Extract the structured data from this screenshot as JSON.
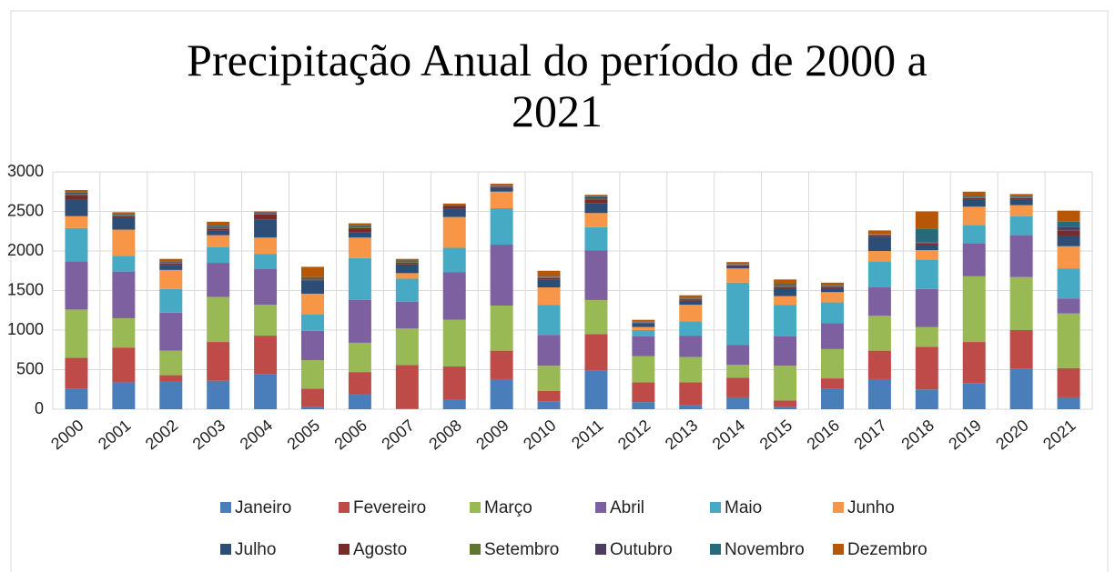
{
  "chart_data": {
    "type": "stacked_bar",
    "title": "Precipitação Anual do período de 2000 a 2021",
    "categories": [
      "2000",
      "2001",
      "2002",
      "2003",
      "2004",
      "2005",
      "2006",
      "2007",
      "2008",
      "2009",
      "2010",
      "2011",
      "2012",
      "2013",
      "2014",
      "2015",
      "2016",
      "2017",
      "2018",
      "2019",
      "2020",
      "2021"
    ],
    "ylim": [
      0,
      3000
    ],
    "yticks": [
      0,
      500,
      1000,
      1500,
      2000,
      2500,
      3000
    ],
    "grid": true,
    "legend": "bottom",
    "series": [
      {
        "name": "Janeiro",
        "color": "#4a7ebb",
        "values": [
          260,
          340,
          350,
          360,
          440,
          30,
          190,
          10,
          120,
          380,
          100,
          490,
          90,
          50,
          150,
          30,
          260,
          380,
          250,
          330,
          510,
          150
        ]
      },
      {
        "name": "Fevereiro",
        "color": "#be4b48",
        "values": [
          390,
          440,
          80,
          490,
          490,
          230,
          280,
          550,
          420,
          360,
          130,
          460,
          250,
          290,
          250,
          80,
          130,
          360,
          540,
          520,
          490,
          370
        ]
      },
      {
        "name": "Março",
        "color": "#98b954",
        "values": [
          610,
          370,
          310,
          570,
          390,
          360,
          370,
          460,
          590,
          570,
          320,
          430,
          330,
          320,
          160,
          440,
          370,
          440,
          250,
          830,
          670,
          690
        ]
      },
      {
        "name": "Abril",
        "color": "#7d60a0",
        "values": [
          610,
          590,
          480,
          430,
          450,
          370,
          540,
          340,
          600,
          770,
          390,
          630,
          250,
          270,
          250,
          370,
          330,
          360,
          480,
          420,
          530,
          190
        ]
      },
      {
        "name": "Maio",
        "color": "#46aac5",
        "values": [
          420,
          200,
          300,
          200,
          190,
          210,
          530,
          290,
          310,
          460,
          380,
          290,
          80,
          180,
          790,
          400,
          260,
          330,
          370,
          230,
          240,
          380
        ]
      },
      {
        "name": "Junho",
        "color": "#f79646",
        "values": [
          150,
          330,
          240,
          150,
          210,
          260,
          260,
          70,
          390,
          210,
          220,
          180,
          40,
          210,
          180,
          110,
          130,
          130,
          120,
          230,
          140,
          280
        ]
      },
      {
        "name": "Julho",
        "color": "#2c4d75",
        "values": [
          210,
          150,
          60,
          60,
          230,
          170,
          70,
          110,
          100,
          50,
          100,
          120,
          40,
          50,
          30,
          100,
          50,
          180,
          70,
          90,
          70,
          130
        ]
      },
      {
        "name": "Agosto",
        "color": "#772c2a",
        "values": [
          60,
          20,
          20,
          20,
          60,
          10,
          50,
          20,
          40,
          10,
          20,
          50,
          10,
          20,
          10,
          20,
          20,
          20,
          20,
          20,
          20,
          70
        ]
      },
      {
        "name": "Setembro",
        "color": "#5f7530",
        "values": [
          10,
          10,
          10,
          10,
          10,
          10,
          10,
          10,
          5,
          5,
          5,
          10,
          5,
          5,
          5,
          5,
          5,
          5,
          5,
          5,
          5,
          5
        ]
      },
      {
        "name": "Outubro",
        "color": "#4d3b62",
        "values": [
          10,
          0,
          10,
          10,
          10,
          10,
          10,
          10,
          5,
          5,
          5,
          20,
          5,
          5,
          5,
          5,
          5,
          5,
          5,
          5,
          5,
          35
        ]
      },
      {
        "name": "Novembro",
        "color": "#276a7c",
        "values": [
          10,
          10,
          10,
          20,
          10,
          10,
          10,
          10,
          5,
          5,
          5,
          10,
          5,
          10,
          5,
          20,
          10,
          5,
          170,
          20,
          10,
          70
        ]
      },
      {
        "name": "Dezembro",
        "color": "#b65708",
        "values": [
          30,
          30,
          30,
          50,
          10,
          130,
          30,
          20,
          15,
          25,
          75,
          20,
          25,
          30,
          25,
          60,
          30,
          45,
          220,
          50,
          30,
          140
        ]
      }
    ]
  }
}
